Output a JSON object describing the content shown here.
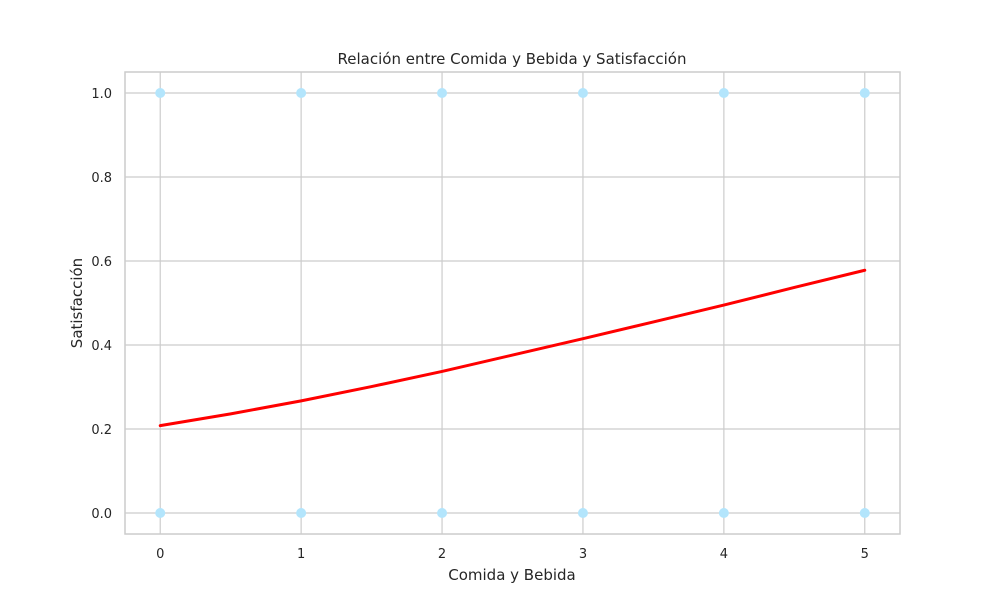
{
  "chart_data": {
    "type": "scatter",
    "title": "Relación entre Comida y Bebida y Satisfacción",
    "xlabel": "Comida y Bebida",
    "ylabel": "Satisfacción",
    "xlim": [
      -0.25,
      5.25
    ],
    "ylim": [
      -0.05,
      1.05
    ],
    "x_ticks": [
      0,
      1,
      2,
      3,
      4,
      5
    ],
    "y_ticks": [
      0.0,
      0.2,
      0.4,
      0.6,
      0.8,
      1.0
    ],
    "y_tick_labels": [
      "0.0",
      "0.2",
      "0.4",
      "0.6",
      "0.8",
      "1.0"
    ],
    "grid": true,
    "series": [
      {
        "type": "scatter",
        "color": "#b3e5fc",
        "points": [
          {
            "x": 0,
            "y": 1
          },
          {
            "x": 1,
            "y": 1
          },
          {
            "x": 2,
            "y": 1
          },
          {
            "x": 3,
            "y": 1
          },
          {
            "x": 4,
            "y": 1
          },
          {
            "x": 5,
            "y": 1
          },
          {
            "x": 0,
            "y": 0
          },
          {
            "x": 1,
            "y": 0
          },
          {
            "x": 2,
            "y": 0
          },
          {
            "x": 3,
            "y": 0
          },
          {
            "x": 4,
            "y": 0
          },
          {
            "x": 5,
            "y": 0
          }
        ]
      },
      {
        "type": "line",
        "color": "#ff0000",
        "x": [
          0,
          0.5,
          1,
          1.5,
          2,
          2.5,
          3,
          3.5,
          4,
          4.5,
          5
        ],
        "y": [
          0.208,
          0.236,
          0.267,
          0.301,
          0.337,
          0.376,
          0.415,
          0.455,
          0.495,
          0.537,
          0.578
        ]
      }
    ]
  }
}
